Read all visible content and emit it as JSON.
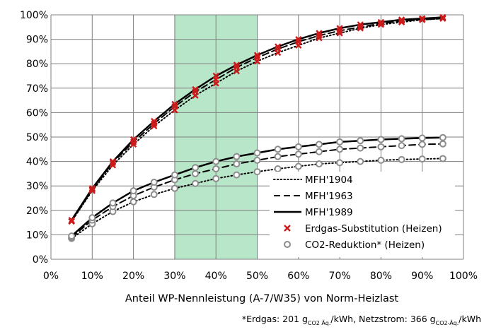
{
  "chart_data": {
    "type": "line",
    "title": "",
    "xlabel": "Anteil WP-Nennleistung (A-7/W35) von Norm-Heizlast",
    "ylabel": "",
    "xlim": [
      0,
      100
    ],
    "ylim": [
      0,
      100
    ],
    "x_tick_labels": [
      "0%",
      "10%",
      "20%",
      "30%",
      "40%",
      "50%",
      "60%",
      "70%",
      "80%",
      "90%",
      "100%"
    ],
    "y_tick_labels": [
      "0%",
      "10%",
      "20%",
      "30%",
      "40%",
      "50%",
      "60%",
      "70%",
      "80%",
      "90%",
      "100%"
    ],
    "grid": true,
    "highlight_band": {
      "x_from": 30,
      "x_to": 50,
      "color": "#b7e6c8"
    },
    "x": [
      5,
      10,
      15,
      20,
      25,
      30,
      35,
      40,
      45,
      50,
      55,
      60,
      65,
      70,
      75,
      80,
      85,
      90,
      95
    ],
    "line_styles": [
      {
        "label": "MFH'1904",
        "dash": "dotted"
      },
      {
        "label": "MFH'1963",
        "dash": "dashed"
      },
      {
        "label": "MFH'1989",
        "dash": "solid"
      }
    ],
    "marker_styles": [
      {
        "label": "Erdgas-Substitution (Heizen)",
        "marker": "x",
        "color": "#cc1a1a"
      },
      {
        "label": "CO2-Reduktion* (Heizen)",
        "marker": "o",
        "color": "#8c8c8c"
      }
    ],
    "series": [
      {
        "building": "MFH'1904",
        "metric": "Erdgas-Substitution (Heizen)",
        "values": [
          15.5,
          28,
          38.5,
          47,
          54.5,
          61,
          67,
          72,
          77,
          81,
          84.5,
          87.5,
          90.5,
          92.5,
          94.5,
          96,
          97,
          98,
          98.5
        ]
      },
      {
        "building": "MFH'1963",
        "metric": "Erdgas-Substitution (Heizen)",
        "values": [
          15.5,
          28.5,
          39.5,
          48,
          55.5,
          62.5,
          68.5,
          73.5,
          78.5,
          82.5,
          86,
          89,
          91.5,
          93.5,
          95,
          96.5,
          97.5,
          98,
          98.5
        ]
      },
      {
        "building": "MFH'1989",
        "metric": "Erdgas-Substitution (Heizen)",
        "values": [
          16,
          29,
          40,
          49,
          56.5,
          63.5,
          69.5,
          75,
          79.5,
          83.5,
          87,
          90,
          92.5,
          94.5,
          96,
          97,
          98,
          98.5,
          99
        ]
      },
      {
        "building": "MFH'1904",
        "metric": "CO2-Reduktion* (Heizen)",
        "values": [
          8.5,
          14.5,
          19.5,
          23.5,
          26.5,
          29,
          31,
          33,
          34.5,
          35.8,
          37,
          38,
          39,
          39.5,
          40,
          40.5,
          40.8,
          41,
          41.2
        ]
      },
      {
        "building": "MFH'1963",
        "metric": "CO2-Reduktion* (Heizen)",
        "values": [
          9,
          16,
          21.5,
          26,
          29.5,
          32.5,
          35,
          37,
          39,
          40.5,
          42,
          43,
          44,
          45,
          45.5,
          46,
          46.5,
          47,
          47.2
        ]
      },
      {
        "building": "MFH'1989",
        "metric": "CO2-Reduktion* (Heizen)",
        "values": [
          9.5,
          17,
          23,
          28,
          31.5,
          34.5,
          37.5,
          40,
          42,
          43.5,
          45,
          46,
          47,
          48,
          48.5,
          49,
          49.3,
          49.6,
          49.8
        ]
      }
    ]
  },
  "legend": {
    "entries": [
      "MFH'1904",
      "MFH'1963",
      "MFH'1989",
      "Erdgas-Substitution (Heizen)",
      "CO2-Reduktion* (Heizen)"
    ]
  },
  "footnote": {
    "prefix": "*Erdgas: 201 g",
    "sub1": "CO2 Äq.",
    "middle": "/kWh, Netzstrom: 366 g",
    "sub2": "CO2-Äq.",
    "suffix": "/kWh"
  }
}
